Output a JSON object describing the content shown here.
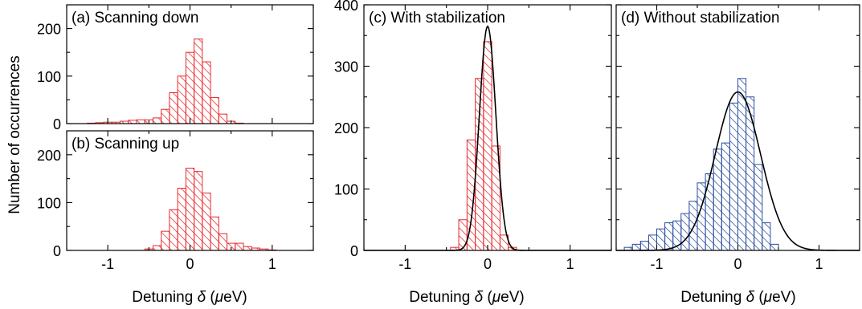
{
  "figure": {
    "ylabel": "Number of occurrences",
    "xlabel_prefix": "Detuning ",
    "xlabel_symbol": "δ",
    "xlabel_unit_open": " (",
    "xlabel_unit_mu": "μ",
    "xlabel_unit_rest": "eV)"
  },
  "colors": {
    "red_hatch": "#e8282e",
    "blue_hatch": "#2c4ea0",
    "fit_line": "#000000",
    "frame": "#000000"
  },
  "chart_data": [
    {
      "id": "a",
      "type": "bar",
      "title": "(a) Scanning down",
      "color": "red",
      "hatch": "diagonal",
      "bin_width": 0.1,
      "bin_centers": [
        -1.2,
        -1.1,
        -1.0,
        -0.9,
        -0.8,
        -0.7,
        -0.6,
        -0.5,
        -0.4,
        -0.3,
        -0.2,
        -0.1,
        0.0,
        0.1,
        0.2,
        0.3,
        0.4,
        0.5,
        0.6
      ],
      "values": [
        1,
        2,
        3,
        3,
        5,
        7,
        8,
        8,
        12,
        30,
        65,
        100,
        150,
        178,
        130,
        55,
        20,
        5,
        1
      ],
      "xlim": [
        -1.5,
        1.5
      ],
      "ylim": [
        0,
        250
      ],
      "x_ticks": [
        -1,
        0,
        1
      ],
      "x_tick_labels_shown": false,
      "y_ticks": [
        0,
        100,
        200
      ],
      "y_tick_labels": [
        "0",
        "100",
        "200"
      ]
    },
    {
      "id": "b",
      "type": "bar",
      "title": "(b) Scanning up",
      "color": "red",
      "hatch": "diagonal",
      "bin_width": 0.1,
      "bin_centers": [
        -0.5,
        -0.4,
        -0.3,
        -0.2,
        -0.1,
        0.0,
        0.1,
        0.2,
        0.3,
        0.4,
        0.5,
        0.6,
        0.7,
        0.8,
        0.9,
        1.0
      ],
      "values": [
        3,
        10,
        40,
        85,
        130,
        172,
        165,
        120,
        70,
        35,
        15,
        15,
        8,
        5,
        3,
        1
      ],
      "xlim": [
        -1.5,
        1.5
      ],
      "ylim": [
        0,
        250
      ],
      "x_ticks": [
        -1,
        0,
        1
      ],
      "x_tick_labels": [
        "-1",
        "0",
        "1"
      ],
      "y_ticks": [
        0,
        100,
        200
      ],
      "y_tick_labels": [
        "0",
        "100",
        "200"
      ]
    },
    {
      "id": "c",
      "type": "bar",
      "title": "(c) With stabilization",
      "color": "red",
      "hatch": "diagonal",
      "bin_width": 0.1,
      "bin_centers": [
        -0.4,
        -0.3,
        -0.2,
        -0.1,
        0.0,
        0.1,
        0.2,
        0.3
      ],
      "values": [
        5,
        50,
        180,
        280,
        340,
        170,
        25,
        5
      ],
      "fit": {
        "type": "gaussian",
        "amplitude": 365,
        "center": 0.0,
        "sigma": 0.1
      },
      "xlim": [
        -1.5,
        1.5
      ],
      "ylim": [
        0,
        400
      ],
      "x_ticks": [
        -1,
        0,
        1
      ],
      "x_tick_labels": [
        "-1",
        "0",
        "1"
      ],
      "y_ticks": [
        0,
        100,
        200,
        300,
        400
      ],
      "y_tick_labels": [
        "0",
        "100",
        "200",
        "300",
        "400"
      ]
    },
    {
      "id": "d",
      "type": "bar",
      "title": "(d) Without stabilization",
      "color": "blue",
      "hatch": "diagonal",
      "bin_width": 0.1,
      "bin_centers": [
        -1.35,
        -1.25,
        -1.15,
        -1.05,
        -0.95,
        -0.85,
        -0.75,
        -0.65,
        -0.55,
        -0.45,
        -0.35,
        -0.25,
        -0.15,
        -0.05,
        0.05,
        0.15,
        0.25,
        0.35,
        0.45
      ],
      "values": [
        5,
        10,
        15,
        25,
        35,
        45,
        48,
        60,
        80,
        110,
        125,
        165,
        175,
        240,
        280,
        250,
        140,
        45,
        10
      ],
      "fit": {
        "type": "gaussian",
        "amplitude": 258,
        "center": 0.0,
        "sigma": 0.28
      },
      "xlim": [
        -1.5,
        1.5
      ],
      "ylim": [
        0,
        400
      ],
      "x_ticks": [
        -1,
        0,
        1
      ],
      "x_tick_labels": [
        "-1",
        "0",
        "1"
      ],
      "y_ticks": [
        0,
        100,
        200,
        300,
        400
      ],
      "y_tick_labels_shown": false
    }
  ]
}
